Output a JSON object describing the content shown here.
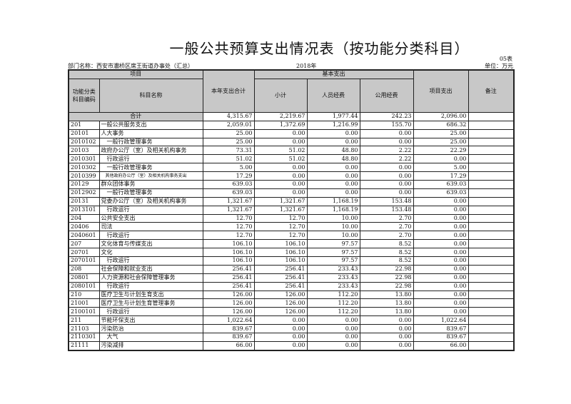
{
  "title": "一般公共预算支出情况表（按功能分类科目）",
  "form_no": "05表",
  "department": "部门名称：西安市灞桥区席王街道办事处（汇总）",
  "year": "2018年",
  "unit": "单位：万元",
  "headers": {
    "project": "项目",
    "code": "功能分类科目编码",
    "name": "科目名称",
    "total": "本年支出合计",
    "basic": "基本支出",
    "subtotal": "小计",
    "personnel": "人员经费",
    "public": "公用经费",
    "project_exp": "项目支出",
    "remark": "备注"
  },
  "total_row": {
    "label": "合计",
    "values": [
      "4,315.67",
      "2,219.67",
      "1,977.44",
      "242.23",
      "2,096.00"
    ]
  },
  "rows": [
    {
      "code": "201",
      "name": "一般公共服务支出",
      "v": [
        "2,059.01",
        "1,372.69",
        "1,216.99",
        "155.70",
        "686.32"
      ]
    },
    {
      "code": "20101",
      "name": "人大事务",
      "v": [
        "25.00",
        "0.00",
        "0.00",
        "0.00",
        "25.00"
      ]
    },
    {
      "code": "2010102",
      "name": "　一般行政管理事务",
      "v": [
        "25.00",
        "0.00",
        "0.00",
        "0.00",
        "25.00"
      ]
    },
    {
      "code": "20103",
      "name": "政府办公厅（室）及相关机构事务",
      "v": [
        "73.31",
        "51.02",
        "48.80",
        "2.22",
        "22.29"
      ]
    },
    {
      "code": "2010301",
      "name": "　行政运行",
      "v": [
        "51.02",
        "51.02",
        "48.80",
        "2.22",
        "0.00"
      ]
    },
    {
      "code": "2010302",
      "name": "　一般行政管理事务",
      "v": [
        "5.00",
        "0.00",
        "0.00",
        "0.00",
        "5.00"
      ]
    },
    {
      "code": "2010399",
      "name": "　其他政府办公厅（室）及相关机构事务支出",
      "v": [
        "17.29",
        "0.00",
        "0.00",
        "0.00",
        "17.29"
      ],
      "small": true
    },
    {
      "code": "20129",
      "name": "群众团体事务",
      "v": [
        "639.03",
        "0.00",
        "0.00",
        "0.00",
        "639.03"
      ]
    },
    {
      "code": "2012902",
      "name": "　一般行政管理事务",
      "v": [
        "639.03",
        "0.00",
        "0.00",
        "0.00",
        "639.03"
      ]
    },
    {
      "code": "20131",
      "name": "党委办公厅（室）及相关机构事务",
      "v": [
        "1,321.67",
        "1,321.67",
        "1,168.19",
        "153.48",
        "0.00"
      ]
    },
    {
      "code": "2013101",
      "name": "　行政运行",
      "v": [
        "1,321.67",
        "1,321.67",
        "1,168.19",
        "153.48",
        "0.00"
      ]
    },
    {
      "code": "204",
      "name": "公共安全支出",
      "v": [
        "12.70",
        "12.70",
        "10.00",
        "2.70",
        "0.00"
      ]
    },
    {
      "code": "20406",
      "name": "司法",
      "v": [
        "12.70",
        "12.70",
        "10.00",
        "2.70",
        "0.00"
      ]
    },
    {
      "code": "2040601",
      "name": "　行政运行",
      "v": [
        "12.70",
        "12.70",
        "10.00",
        "2.70",
        "0.00"
      ]
    },
    {
      "code": "207",
      "name": "文化体育与传媒支出",
      "v": [
        "106.10",
        "106.10",
        "97.57",
        "8.52",
        "0.00"
      ]
    },
    {
      "code": "20701",
      "name": "文化",
      "v": [
        "106.10",
        "106.10",
        "97.57",
        "8.52",
        "0.00"
      ]
    },
    {
      "code": "2070101",
      "name": "　行政运行",
      "v": [
        "106.10",
        "106.10",
        "97.57",
        "8.52",
        "0.00"
      ]
    },
    {
      "code": "208",
      "name": "社会保障和就业支出",
      "v": [
        "256.41",
        "256.41",
        "233.43",
        "22.98",
        "0.00"
      ]
    },
    {
      "code": "20801",
      "name": "人力资源和社会保障管理事务",
      "v": [
        "256.41",
        "256.41",
        "233.43",
        "22.98",
        "0.00"
      ]
    },
    {
      "code": "2080101",
      "name": "　行政运行",
      "v": [
        "256.41",
        "256.41",
        "233.43",
        "22.98",
        "0.00"
      ]
    },
    {
      "code": "210",
      "name": "医疗卫生与计划生育支出",
      "v": [
        "126.00",
        "126.00",
        "112.20",
        "13.80",
        "0.00"
      ]
    },
    {
      "code": "21001",
      "name": "医疗卫生与计划生育管理事务",
      "v": [
        "126.00",
        "126.00",
        "112.20",
        "13.80",
        "0.00"
      ]
    },
    {
      "code": "2100101",
      "name": "　行政运行",
      "v": [
        "126.00",
        "126.00",
        "112.20",
        "13.80",
        "0.00"
      ]
    },
    {
      "code": "211",
      "name": "节能环保支出",
      "v": [
        "1,022.64",
        "0.00",
        "0.00",
        "0.00",
        "1,022.64"
      ]
    },
    {
      "code": "21103",
      "name": "污染防治",
      "v": [
        "839.67",
        "0.00",
        "0.00",
        "0.00",
        "839.67"
      ]
    },
    {
      "code": "2110301",
      "name": "　大气",
      "v": [
        "839.67",
        "0.00",
        "0.00",
        "0.00",
        "839.67"
      ]
    },
    {
      "code": "21111",
      "name": "污染减排",
      "v": [
        "66.00",
        "0.00",
        "0.00",
        "0.00",
        "66.00"
      ]
    }
  ]
}
